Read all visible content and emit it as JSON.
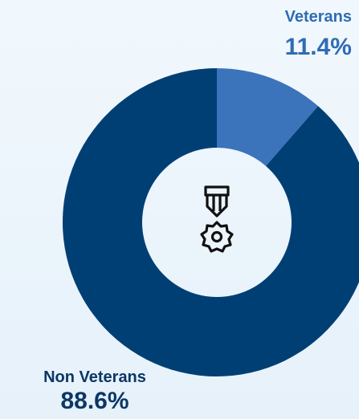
{
  "chart_data": {
    "type": "donut",
    "categories": [
      "Veterans",
      "Non Veterans"
    ],
    "values": [
      11.4,
      88.6
    ],
    "value_labels": [
      "11.4%",
      "88.6%"
    ],
    "colors": [
      "#3c74bb",
      "#003f74"
    ]
  }
}
